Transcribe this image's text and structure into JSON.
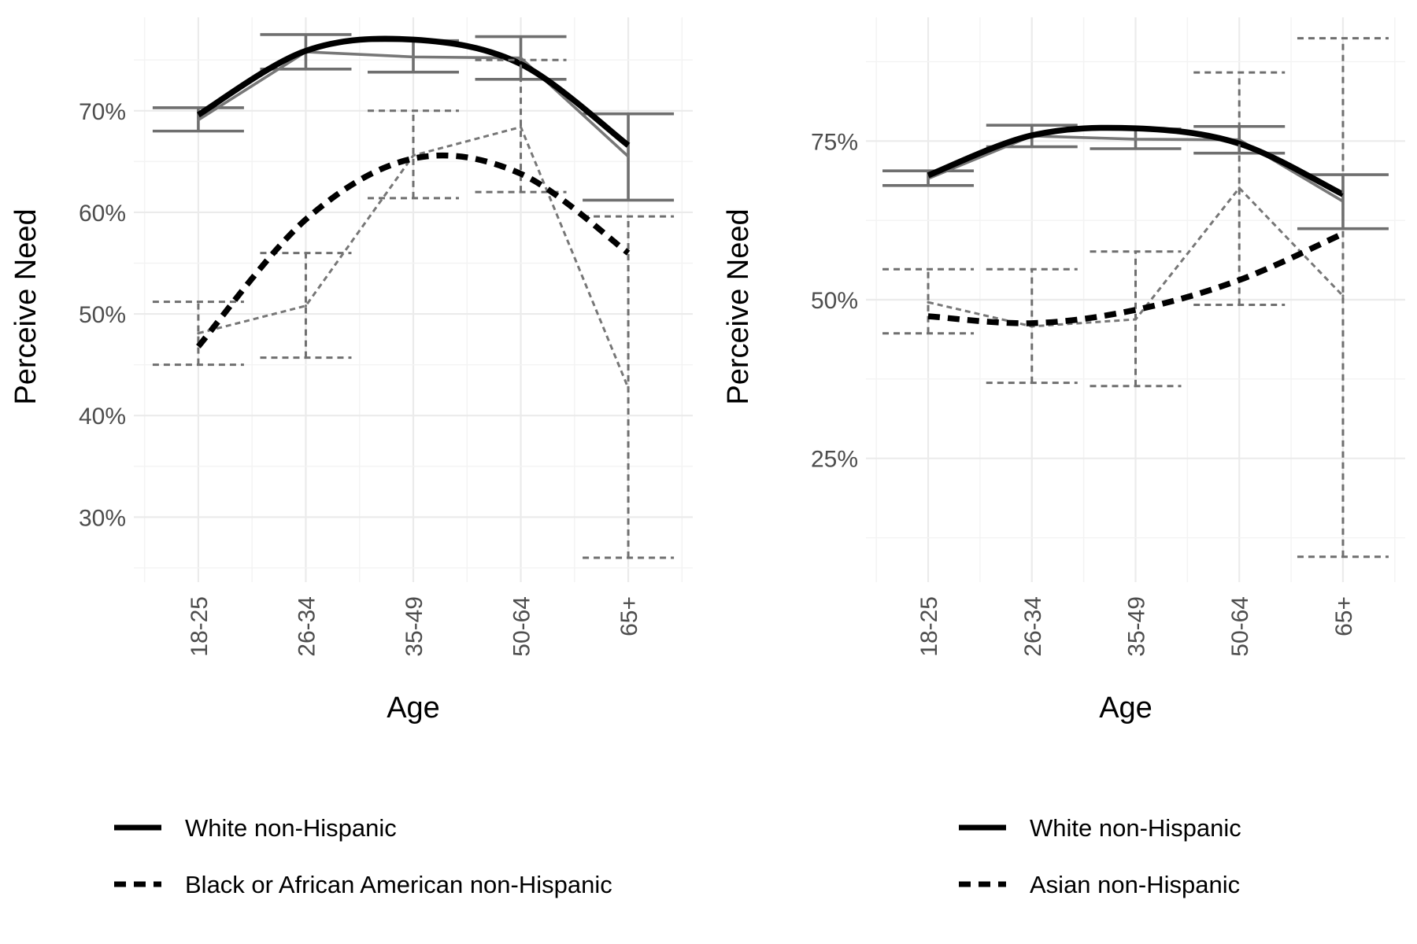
{
  "chart_data": [
    {
      "type": "line",
      "xlabel": "Age",
      "ylabel": "Perceive Need",
      "categories": [
        "18-25",
        "26-34",
        "35-49",
        "50-64",
        "65+"
      ],
      "ylim": [
        23.6,
        79.2
      ],
      "yticks": [
        30,
        40,
        50,
        60,
        70
      ],
      "ytick_labels": [
        "30%",
        "40%",
        "50%",
        "60%",
        "70%"
      ],
      "grid": true,
      "legend_position": "bottom",
      "series": [
        {
          "name": "White non-Hispanic",
          "linestyle": "solid",
          "values": [
            69.1,
            75.8,
            75.3,
            75.2,
            65.5
          ],
          "ci_low": [
            68.0,
            74.1,
            73.8,
            73.1,
            61.2
          ],
          "ci_high": [
            70.3,
            77.5,
            76.9,
            77.3,
            69.7
          ],
          "fit": [
            69.6,
            75.9,
            77.0,
            74.6,
            66.6
          ]
        },
        {
          "name": "Black or African American non-Hispanic",
          "linestyle": "dashed",
          "values": [
            48.1,
            50.8,
            65.6,
            68.4,
            42.7
          ],
          "ci_low": [
            45.0,
            45.7,
            61.4,
            62.0,
            26.0
          ],
          "ci_high": [
            51.2,
            56.0,
            70.0,
            75.0,
            59.6
          ],
          "fit": [
            46.8,
            59.3,
            65.3,
            63.8,
            56.0
          ]
        }
      ]
    },
    {
      "type": "line",
      "xlabel": "Age",
      "ylabel": "Perceive Need",
      "categories": [
        "18-25",
        "26-34",
        "35-49",
        "50-64",
        "65+"
      ],
      "ylim": [
        5.5,
        94.5
      ],
      "yticks": [
        25,
        50,
        75
      ],
      "ytick_labels": [
        "25%",
        "50%",
        "75%"
      ],
      "grid": true,
      "legend_position": "bottom",
      "series": [
        {
          "name": "White non-Hispanic",
          "linestyle": "solid",
          "values": [
            69.1,
            75.8,
            75.3,
            75.2,
            65.5
          ],
          "ci_low": [
            68.0,
            74.1,
            73.8,
            73.1,
            61.2
          ],
          "ci_high": [
            70.3,
            77.5,
            76.9,
            77.3,
            69.7
          ],
          "fit": [
            69.6,
            75.9,
            77.0,
            74.6,
            66.6
          ]
        },
        {
          "name": "Asian non-Hispanic",
          "linestyle": "dashed",
          "values": [
            49.6,
            45.8,
            46.9,
            67.6,
            50.6
          ],
          "ci_low": [
            44.7,
            36.9,
            36.4,
            49.2,
            9.5
          ],
          "ci_high": [
            54.8,
            54.8,
            57.6,
            85.8,
            91.2
          ],
          "fit": [
            47.4,
            46.3,
            48.4,
            53.1,
            60.4
          ]
        }
      ]
    }
  ]
}
